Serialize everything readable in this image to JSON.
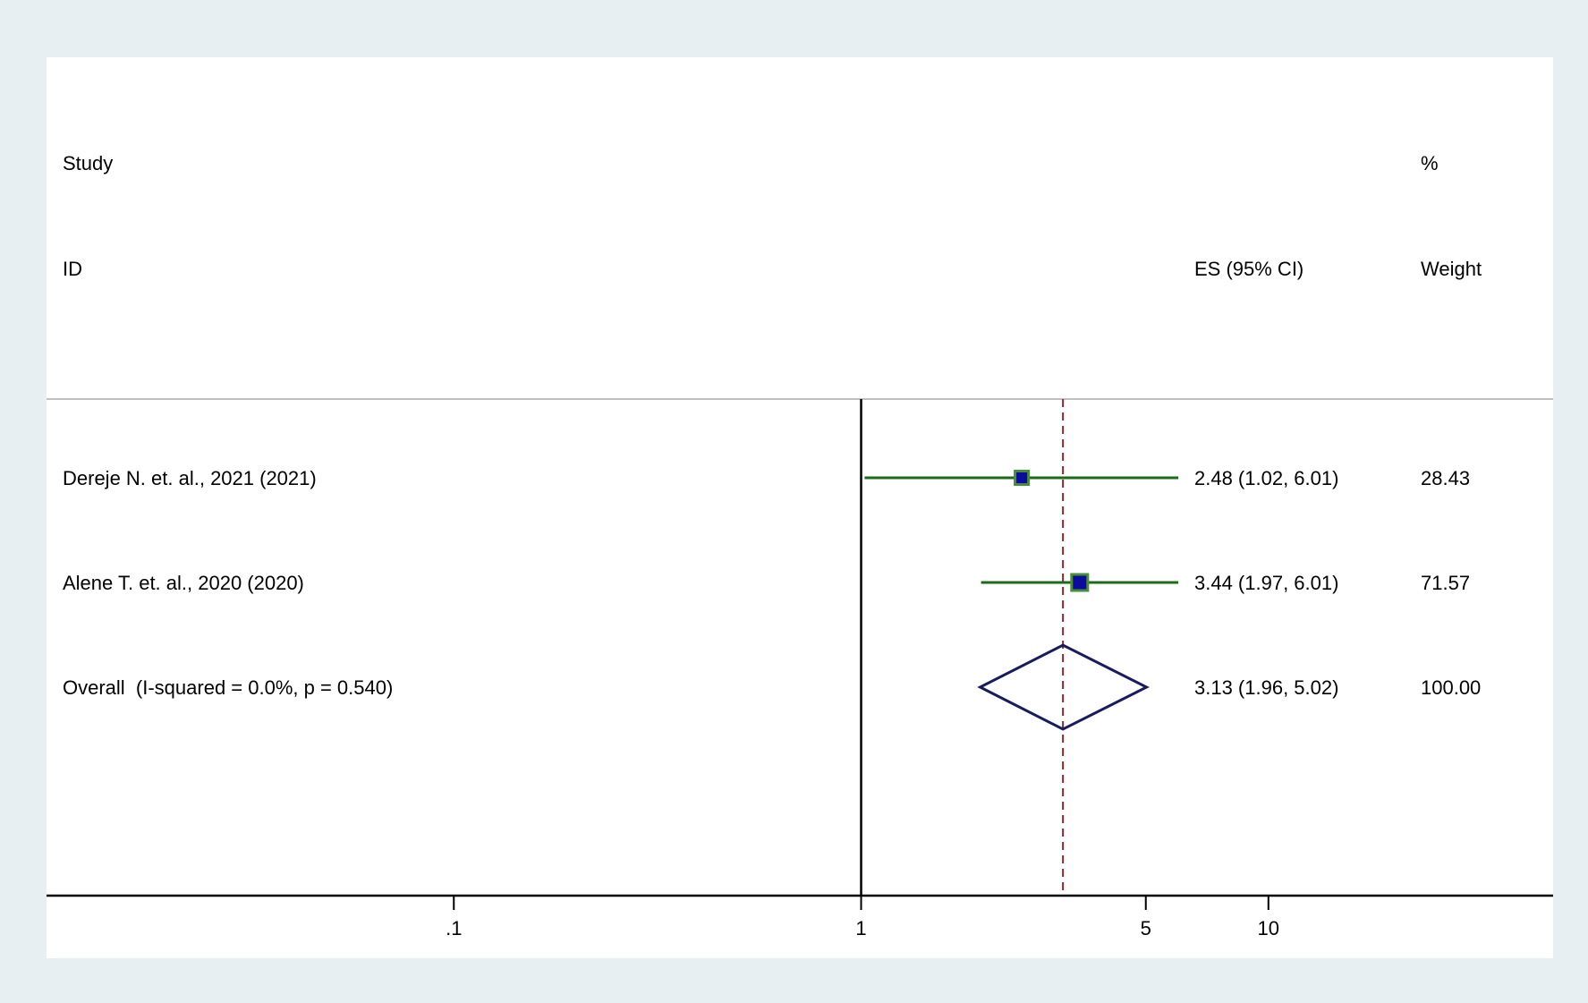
{
  "header": {
    "study_top": "Study",
    "study_bottom": "ID",
    "es_label": "ES (95% CI)",
    "weight_top": "%",
    "weight_bottom": "Weight"
  },
  "rows": [
    {
      "label": "Dereje N. et. al., 2021 (2021)",
      "es_text": "2.48 (1.02, 6.01)",
      "weight_text": "28.43"
    },
    {
      "label": "Alene T. et. al., 2020 (2020)",
      "es_text": "3.44 (1.97, 6.01)",
      "weight_text": "71.57"
    },
    {
      "label": "Overall  (I-squared = 0.0%, p = 0.540)",
      "es_text": "3.13 (1.96, 5.02)",
      "weight_text": "100.00"
    }
  ],
  "colors": {
    "background": "#e8eff3",
    "plot_area": "#ffffff",
    "ci_line": "#1a6b1a",
    "marker_fill": "#0b0b9e",
    "marker_border": "#4a8c3a",
    "diamond": "#1a1a5e",
    "overall_line": "#8b2a2a",
    "separator": "#c0c0c0"
  },
  "chart_data": {
    "type": "forest",
    "x_scale": "log",
    "xlim": [
      0.01,
      50
    ],
    "null_line": 1,
    "x_ticks": [
      {
        "value": 0.1,
        "label": ".1"
      },
      {
        "value": 1,
        "label": "1"
      },
      {
        "value": 5,
        "label": "5"
      },
      {
        "value": 10,
        "label": "10"
      }
    ],
    "studies": [
      {
        "name": "Dereje N. et. al., 2021 (2021)",
        "es": 2.48,
        "lower": 1.02,
        "upper": 6.01,
        "weight": 28.43
      },
      {
        "name": "Alene T. et. al., 2020 (2020)",
        "es": 3.44,
        "lower": 1.97,
        "upper": 6.01,
        "weight": 71.57
      }
    ],
    "overall": {
      "name": "Overall  (I-squared = 0.0%, p = 0.540)",
      "es": 3.13,
      "lower": 1.96,
      "upper": 5.02,
      "weight": 100.0,
      "i_squared": "0.0%",
      "p": 0.54
    }
  }
}
